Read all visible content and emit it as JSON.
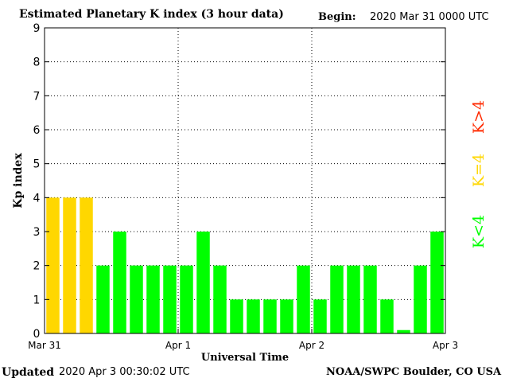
{
  "header": {
    "title": "Estimated Planetary K index (3 hour data)",
    "begin_label": "Begin:",
    "begin_value": "2020 Mar 31 0000 UTC"
  },
  "footer": {
    "updated_label": "Updated",
    "updated_value": "2020 Apr  3 00:30:02 UTC",
    "source": "NOAA/SWPC Boulder, CO USA"
  },
  "colors": {
    "k_low": "#00ff00",
    "k_eq": "#ffd700",
    "k_high": "#ff2a00",
    "grid": "#000000"
  },
  "chart_data": {
    "type": "bar",
    "title": "Estimated Planetary K index (3 hour data)",
    "xlabel": "Universal Time",
    "ylabel": "Kp index",
    "ylim": [
      0,
      9
    ],
    "yticks": [
      "0",
      "1",
      "2",
      "3",
      "4",
      "5",
      "6",
      "7",
      "8",
      "9"
    ],
    "xticks": [
      "Mar 31",
      "Apr 1",
      "Apr 2",
      "Apr 3"
    ],
    "grid": true,
    "series": [
      {
        "values": [
          4,
          4,
          4,
          2,
          3,
          2,
          2,
          2,
          2,
          3,
          2,
          1,
          1,
          1,
          1,
          2,
          1,
          2,
          2,
          2,
          1,
          0.1,
          2,
          3
        ]
      }
    ],
    "legend": [
      "K<4",
      "K=4",
      "K>4"
    ],
    "legend_placement": "right"
  }
}
